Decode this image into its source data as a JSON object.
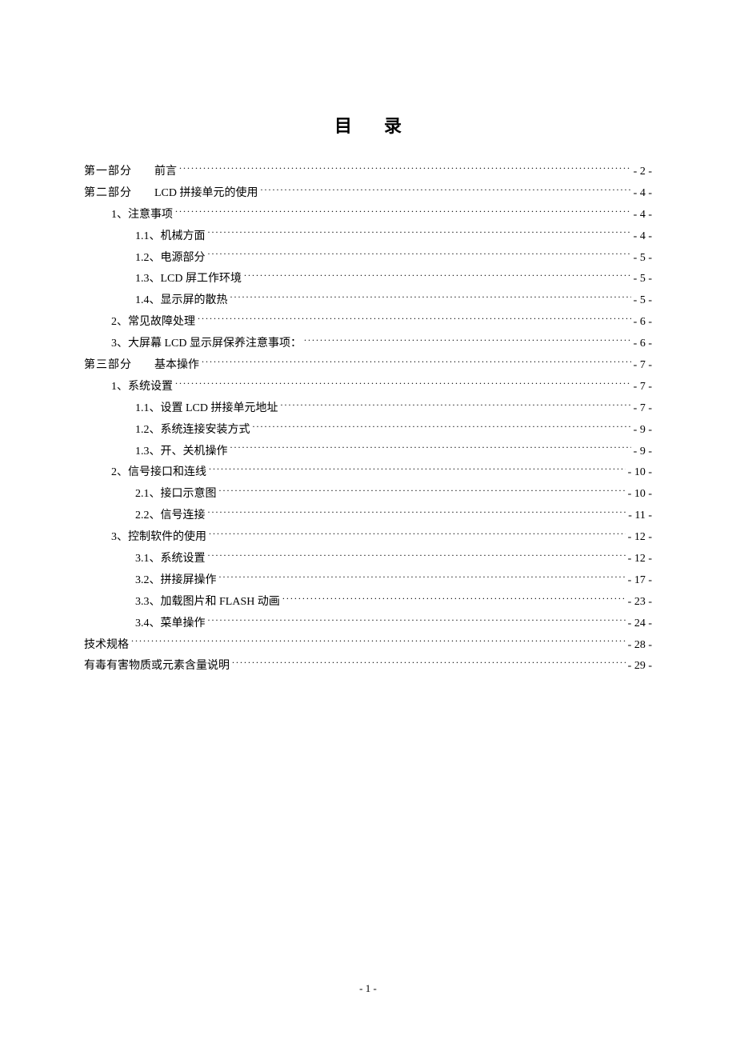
{
  "title": "目录",
  "page_footer": "- 1 -",
  "toc": [
    {
      "indent": 0,
      "label": "第一部分",
      "spacer": "　　",
      "sub": "前言",
      "page": "- 2 -"
    },
    {
      "indent": 0,
      "label": "第二部分",
      "spacer": "　　",
      "sub": "LCD 拼接单元的使用 ",
      "page": "- 4 -"
    },
    {
      "indent": 1,
      "label": "1、注意事项 ",
      "page": "- 4 -"
    },
    {
      "indent": 2,
      "label": "1.1、机械方面 ",
      "page": "- 4 -"
    },
    {
      "indent": 2,
      "label": "1.2、电源部分 ",
      "page": "- 5 -"
    },
    {
      "indent": 2,
      "label": "1.3、LCD 屏工作环境 ",
      "page": "- 5 -"
    },
    {
      "indent": 2,
      "label": "1.4、显示屏的散热 ",
      "page": "- 5 -"
    },
    {
      "indent": 1,
      "label": "2、常见故障处理 ",
      "page": "- 6 -"
    },
    {
      "indent": 1,
      "label": "3、大屏幕  LCD 显示屏保养注意事项： ",
      "page": "- 6 -"
    },
    {
      "indent": 0,
      "label": "第三部分",
      "spacer": "　　",
      "sub": "基本操作 ",
      "page": "- 7 -"
    },
    {
      "indent": 1,
      "label": "1、系统设置 ",
      "page": "- 7 -"
    },
    {
      "indent": 2,
      "label": "1.1、设置  LCD 拼接单元地址 ",
      "page": "- 7 -"
    },
    {
      "indent": 2,
      "label": "1.2、系统连接安装方式 ",
      "page": "- 9 -"
    },
    {
      "indent": 2,
      "label": "1.3、开、关机操作 ",
      "page": "- 9 -"
    },
    {
      "indent": 1,
      "label": "2、信号接口和连线 ",
      "page": "- 10 -"
    },
    {
      "indent": 2,
      "label": "2.1、接口示意图 ",
      "page": "- 10 -"
    },
    {
      "indent": 2,
      "label": "2.2、信号连接 ",
      "page": " - 11 -"
    },
    {
      "indent": 1,
      "label": "3、控制软件的使用 ",
      "page": "- 12 -"
    },
    {
      "indent": 2,
      "label": "3.1、系统设置 ",
      "page": "- 12 -"
    },
    {
      "indent": 2,
      "label": "3.2、拼接屏操作 ",
      "page": "- 17 -"
    },
    {
      "indent": 2,
      "label": "3.3、加载图片和  FLASH 动画 ",
      "page": "- 23 -"
    },
    {
      "indent": 2,
      "label": "3.4、菜单操作 ",
      "page": "- 24 -"
    },
    {
      "indent": 0,
      "label": "技术规格 ",
      "page": "- 28 -"
    },
    {
      "indent": 0,
      "label": "有毒有害物质或元素含量说明 ",
      "page": " - 29 -"
    }
  ]
}
